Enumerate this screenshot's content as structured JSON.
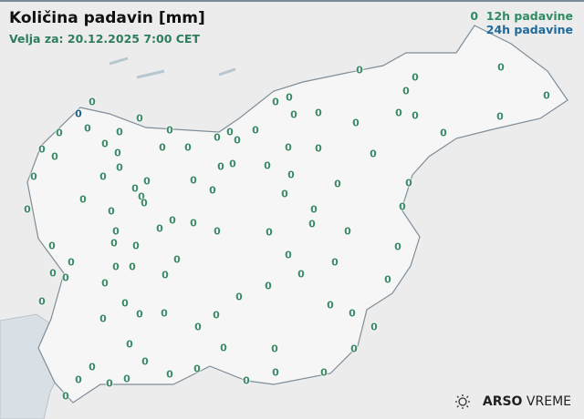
{
  "header": {
    "title": "Količina padavin [mm]",
    "valid_for": "Velja za: 20.12.2025 7:00 CET"
  },
  "legend": {
    "sample_value": "0",
    "item_12h": "12h padavine",
    "item_24h": "24h padavine",
    "color_12h": "#2e8b62",
    "color_24h": "#1f6a9a"
  },
  "brand": {
    "logo_icon": "sun-cloud-icon",
    "name_bold": "ARSO",
    "name_rest": "VREME"
  },
  "stations": {
    "value": "0",
    "count_12h": 105,
    "count_24h": 1
  }
}
